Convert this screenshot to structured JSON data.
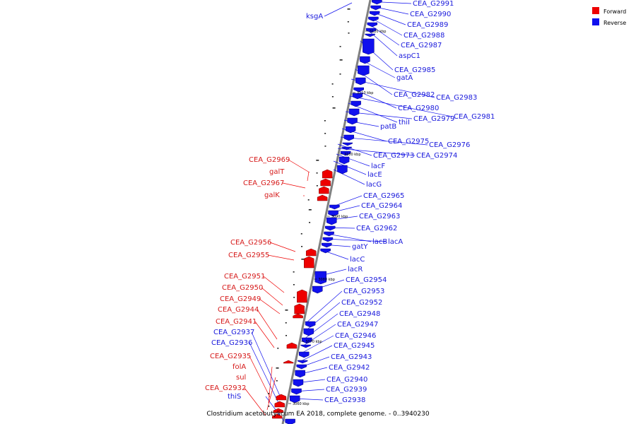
{
  "caption": "Clostridium acetobutylicum EA 2018, complete genome. - 0..3940230",
  "legend": [
    {
      "label": "Forward",
      "color": "#ee0000"
    },
    {
      "label": "Reverse",
      "color": "#1010ee"
    }
  ],
  "colors": {
    "forward": "#ee0000",
    "reverse": "#1010ee",
    "backbone": "#808080"
  },
  "ticks": [
    "3120 kbp",
    "3110 kbp",
    "3100 kbp",
    "3090 kbp",
    "3080 kbp",
    "3070 kbp",
    "3060 kbp"
  ],
  "reverse_labels": [
    "ksgA",
    "CEA_G2991",
    "CEA_G2990",
    "CEA_G2989",
    "CEA_G2988",
    "CEA_G2987",
    "aspC1",
    "CEA_G2985",
    "gatA",
    "CEA_G2982",
    "CEA_G2983",
    "CEA_G2980",
    "CEA_G2981",
    "thiI",
    "CEA_G2979",
    "patB",
    "CEA_G2975",
    "CEA_G2976",
    "CEA_G2973",
    "CEA_G2974",
    "lacF",
    "lacE",
    "lacG",
    "CEA_G2965",
    "CEA_G2964",
    "CEA_G2963",
    "CEA_G2962",
    "lacB",
    "lacA",
    "gatY",
    "lacC",
    "lacR",
    "CEA_G2954",
    "CEA_G2953",
    "CEA_G2952",
    "CEA_G2948",
    "CEA_G2947",
    "CEA_G2946",
    "CEA_G2945",
    "CEA_G2943",
    "CEA_G2942",
    "CEA_G2940",
    "CEA_G2939",
    "CEA_G2938",
    "CEA_G2937",
    "CEA_G2936",
    "thiS"
  ],
  "forward_labels": [
    "CEA_G2969",
    "galT",
    "CEA_G2967",
    "galK",
    "CEA_G2956",
    "CEA_G2955",
    "CEA_G2951",
    "CEA_G2950",
    "CEA_G2949",
    "CEA_G2944",
    "CEA_G2941",
    "CEA_G2935",
    "folA",
    "sul",
    "CEA_G2932"
  ]
}
